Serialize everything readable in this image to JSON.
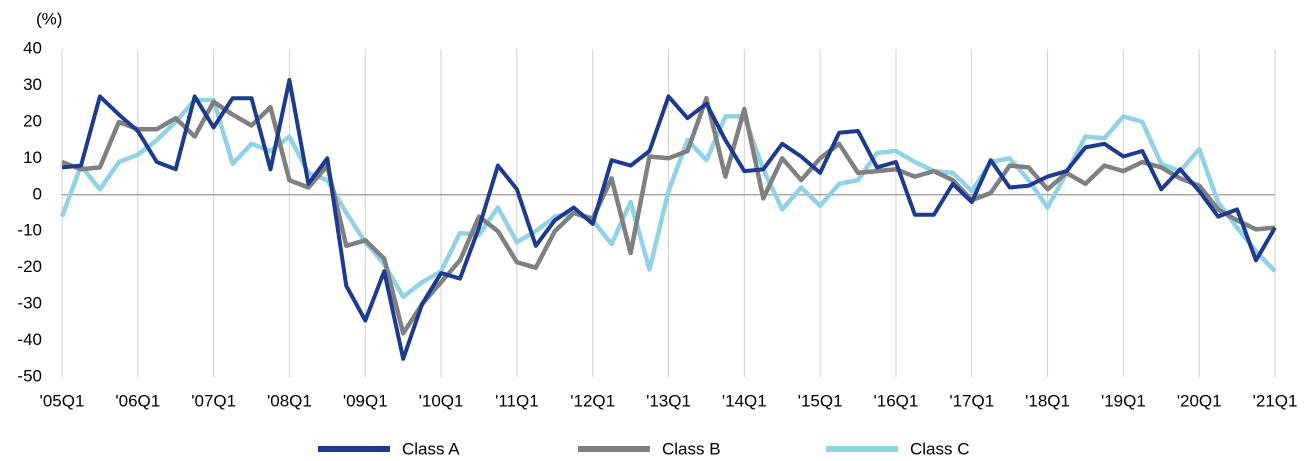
{
  "chart_data": {
    "type": "line",
    "y_label": "(%)",
    "categories": [
      "'05Q1",
      null,
      null,
      null,
      "'06Q1",
      null,
      null,
      null,
      "'07Q1",
      null,
      null,
      null,
      "'08Q1",
      null,
      null,
      null,
      "'09Q1",
      null,
      null,
      null,
      "'10Q1",
      null,
      null,
      null,
      "'11Q1",
      null,
      null,
      null,
      "'12Q1",
      null,
      null,
      null,
      "'13Q1",
      null,
      null,
      null,
      "'14Q1",
      null,
      null,
      null,
      "'15Q1",
      null,
      null,
      null,
      "'16Q1",
      null,
      null,
      null,
      "'17Q1",
      null,
      null,
      null,
      "'18Q1",
      null,
      null,
      null,
      "'19Q1",
      null,
      null,
      null,
      "'20Q1",
      null,
      null,
      null,
      "'21Q1"
    ],
    "series": [
      {
        "name": "Class A",
        "color": "#1c3a8f",
        "values": [
          7.5,
          8,
          27,
          22,
          17.5,
          9,
          7,
          27,
          18.5,
          26.5,
          26.5,
          7,
          31.5,
          3,
          10,
          -25,
          -34.5,
          -21,
          -45,
          -30,
          -21.5,
          -23,
          -9,
          8,
          1.5,
          -14,
          -7,
          -3.5,
          -8,
          9.5,
          8,
          12,
          27,
          21,
          25,
          15,
          6.5,
          7,
          14,
          10.5,
          6,
          17,
          17.5,
          7.5,
          9,
          -5.5,
          -5.5,
          3,
          -2,
          9.5,
          2,
          2.5,
          5,
          6.5,
          13,
          14,
          10.5,
          12,
          1.5,
          7,
          1,
          -6,
          -4,
          -18,
          -9
        ]
      },
      {
        "name": "Class B",
        "color": "#808080",
        "values": [
          9,
          7,
          7.5,
          20,
          18,
          18,
          21,
          16,
          25.5,
          22,
          19,
          24,
          4,
          2,
          8,
          -14,
          -12.5,
          -17.5,
          -38,
          -30,
          -24,
          -18,
          -6,
          -10,
          -18.5,
          -20,
          -10,
          -5,
          -6.5,
          4.5,
          -16,
          10.5,
          10,
          12,
          26.5,
          5,
          23.5,
          -1,
          10,
          4,
          10,
          14,
          6,
          6.5,
          7,
          5,
          6.5,
          4,
          -1.5,
          0.5,
          8,
          7.5,
          1.5,
          6,
          3,
          8,
          6.5,
          9,
          7.5,
          4.5,
          2.5,
          -4,
          -7,
          -9.5,
          -9
        ]
      },
      {
        "name": "Class C",
        "color": "#92d2e6",
        "values": [
          -6,
          8,
          1.5,
          9,
          11,
          15,
          20,
          26,
          26,
          8.5,
          14,
          12,
          16,
          6,
          4,
          -5,
          -13,
          -19,
          -28,
          -24,
          -21,
          -10.5,
          -11,
          -3.5,
          -13,
          -10,
          -6,
          -5,
          -7,
          -13.5,
          -2,
          -20.5,
          1,
          15,
          9.5,
          21.5,
          21.5,
          7,
          -4,
          2,
          -3,
          3,
          4,
          11.5,
          12,
          9,
          6.5,
          6,
          1,
          9,
          10,
          4,
          -3.5,
          6,
          16,
          15.5,
          21.5,
          20,
          8.5,
          6.5,
          12.5,
          -2,
          -9,
          -15.5,
          -21
        ]
      }
    ],
    "ylim": [
      -50,
      40
    ],
    "yticks": [
      -50,
      -40,
      -30,
      -20,
      -10,
      0,
      10,
      20,
      30,
      40
    ]
  }
}
